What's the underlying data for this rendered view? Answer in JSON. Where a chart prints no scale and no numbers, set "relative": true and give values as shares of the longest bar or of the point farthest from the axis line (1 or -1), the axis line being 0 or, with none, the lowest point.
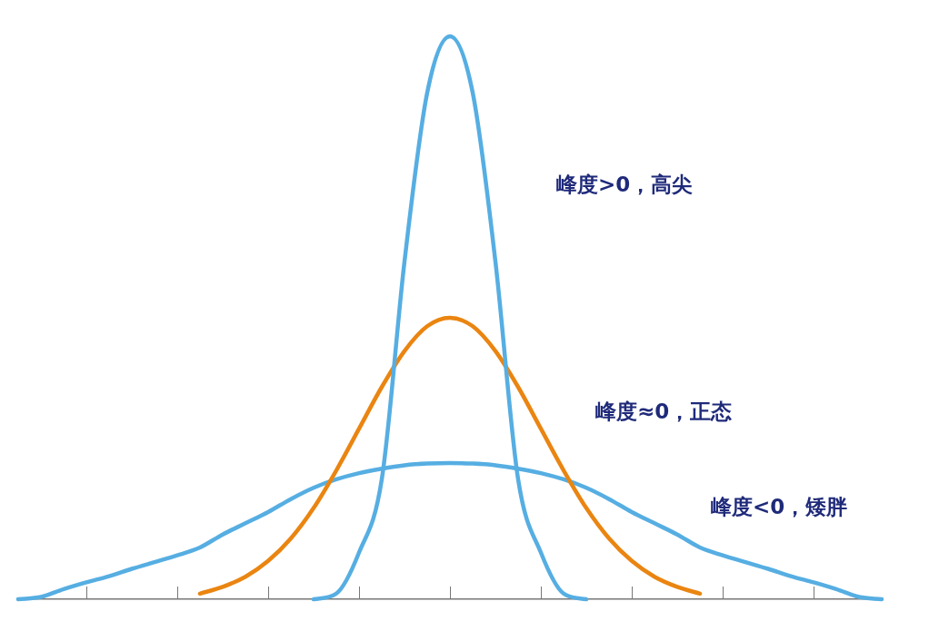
{
  "chart_data": {
    "type": "line",
    "relative": true,
    "categories": [
      null,
      null,
      null,
      null,
      null,
      null,
      null,
      null,
      null,
      null,
      null,
      null,
      null,
      null,
      null,
      null,
      null,
      null,
      null,
      null,
      null,
      null,
      null,
      null,
      null,
      null,
      null,
      null,
      null,
      null,
      null,
      null,
      null,
      null,
      null,
      null,
      null,
      null,
      null
    ],
    "series": [
      {
        "color": "#56aee2",
        "values": [
          null,
          null,
          null,
          null,
          null,
          null,
          null,
          null,
          null,
          null,
          null,
          null,
          null,
          0,
          0.01,
          0.083,
          0.213,
          0.6,
          0.9,
          1,
          0.9,
          0.6,
          0.213,
          0.083,
          0.01,
          0,
          null,
          null,
          null,
          null,
          null,
          null,
          null,
          null,
          null,
          null,
          null,
          null,
          null
        ]
      },
      {
        "color": "#ea8511",
        "values": [
          null,
          null,
          null,
          null,
          null,
          null,
          null,
          null,
          0.01,
          0.022,
          0.04,
          0.068,
          0.108,
          0.162,
          0.229,
          0.303,
          0.377,
          0.441,
          0.485,
          0.5,
          0.485,
          0.441,
          0.377,
          0.303,
          0.229,
          0.162,
          0.108,
          0.068,
          0.04,
          0.022,
          0.01,
          null,
          null,
          null,
          null,
          null,
          null,
          null,
          null
        ]
      },
      {
        "color": "#56aee2",
        "values": [
          0,
          0.004,
          0.018,
          0.03,
          0.041,
          0.054,
          0.066,
          0.078,
          0.092,
          0.115,
          0.135,
          0.155,
          0.178,
          0.198,
          0.213,
          0.224,
          0.232,
          0.238,
          0.241,
          0.242,
          0.241,
          0.238,
          0.232,
          0.224,
          0.213,
          0.198,
          0.178,
          0.155,
          0.135,
          0.115,
          0.092,
          0.078,
          0.066,
          0.054,
          0.041,
          0.03,
          0.018,
          0.004,
          0
        ]
      }
    ],
    "annotations": [
      "峰度>0，高尖",
      "峰度≈0，正态",
      "峰度<0，矮胖"
    ],
    "grid": false,
    "legend": false,
    "marker": "none",
    "line_style": "solid",
    "tick_labels": false
  }
}
